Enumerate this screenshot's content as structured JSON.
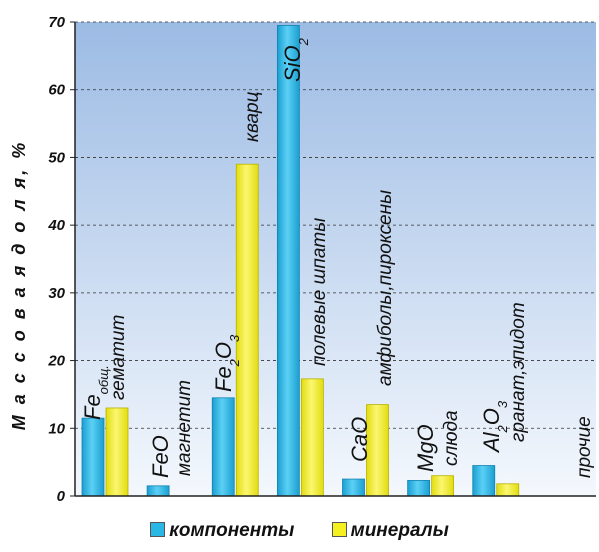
{
  "chart_data": {
    "type": "bar",
    "ylabel": "М а с с о в а я   д о л я, %",
    "ylim": [
      0,
      70
    ],
    "yticks": [
      "0",
      "10",
      "20",
      "30",
      "40",
      "50",
      "60",
      "70"
    ],
    "grid": true,
    "legend_position": "bottom",
    "series": [
      {
        "name": "компоненты",
        "color": "#29b8e6",
        "values": [
          11.5,
          1.5,
          14.5,
          69.5,
          2.5,
          2.3,
          4.5,
          0
        ]
      },
      {
        "name": "минералы",
        "color": "#f5f020",
        "values": [
          13,
          0,
          49,
          17.3,
          13.5,
          3,
          1.8,
          0
        ]
      }
    ],
    "labels": {
      "fe_total": {
        "base": "Fe",
        "sub": "общ."
      },
      "hematite": "гематит",
      "feo": "FeO",
      "magnetite": "магнетит",
      "fe2o3": {
        "a": "Fe",
        "s": "2",
        "b": "O",
        "t": "3"
      },
      "quartz": "кварц",
      "sio2": {
        "a": "SiO",
        "s": "2"
      },
      "feldspar": "полевые шпаты",
      "cao": "CaO",
      "amphibole": "амфиболы,пироксены",
      "mgo": "MgO",
      "mica": "слюда",
      "al2o3": {
        "a": "Al",
        "s": "2",
        "b": "O",
        "t": "3"
      },
      "garnet": "гранат,эпидот",
      "other": "прочие"
    }
  }
}
